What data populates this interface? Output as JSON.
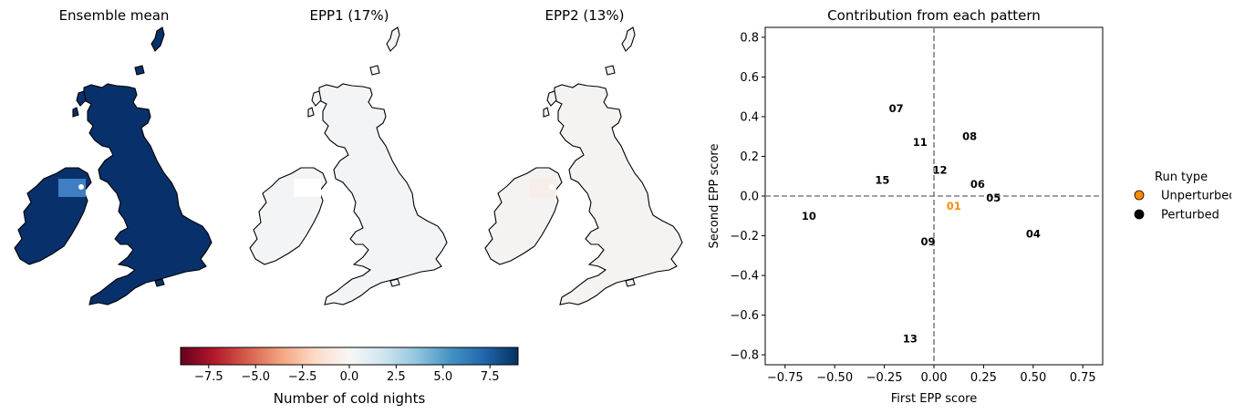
{
  "maps": [
    {
      "title": "Ensemble mean",
      "fill": "#08306b",
      "hotspot": "#3f7ec2"
    },
    {
      "title": "EPP1 (17%)",
      "fill": "#f3f4f6",
      "hotspot": "#ffffff"
    },
    {
      "title": "EPP2 (13%)",
      "fill": "#f5f3f2",
      "hotspot": "#f7eee9"
    }
  ],
  "colorbar": {
    "label": "Number of cold nights",
    "range": [
      -9,
      9
    ],
    "ticks": [
      "−7.5",
      "−5.0",
      "−2.5",
      "0.0",
      "2.5",
      "5.0",
      "7.5"
    ],
    "tick_values": [
      -7.5,
      -5.0,
      -2.5,
      0.0,
      2.5,
      5.0,
      7.5
    ],
    "colormap": "RdBu",
    "stops": [
      "#67001f",
      "#b2182b",
      "#d6604d",
      "#f4a582",
      "#fddbc7",
      "#f7f7f7",
      "#d1e5f0",
      "#92c5de",
      "#4393c3",
      "#2166ac",
      "#053061"
    ]
  },
  "chart_data": {
    "type": "scatter",
    "title": "Contribution from each pattern",
    "xlabel": "First EPP score",
    "ylabel": "Second EPP score",
    "xlim": [
      -0.85,
      0.85
    ],
    "ylim": [
      -0.85,
      0.85
    ],
    "xticks": [
      "−0.75",
      "−0.50",
      "−0.25",
      "0.00",
      "0.25",
      "0.50",
      "0.75"
    ],
    "xtick_values": [
      -0.75,
      -0.5,
      -0.25,
      0.0,
      0.25,
      0.5,
      0.75
    ],
    "yticks": [
      "−0.8",
      "−0.6",
      "−0.4",
      "−0.2",
      "0.0",
      "0.2",
      "0.4",
      "0.6",
      "0.8"
    ],
    "ytick_values": [
      -0.8,
      -0.6,
      -0.4,
      -0.2,
      0.0,
      0.2,
      0.4,
      0.6,
      0.8
    ],
    "reference_lines": {
      "x": 0.0,
      "y": 0.0,
      "style": "dashed",
      "color": "#808080"
    },
    "points": [
      {
        "label": "01",
        "x": 0.1,
        "y": -0.05,
        "run_type": "Unperturbed"
      },
      {
        "label": "04",
        "x": 0.5,
        "y": -0.19,
        "run_type": "Perturbed"
      },
      {
        "label": "05",
        "x": 0.3,
        "y": -0.01,
        "run_type": "Perturbed"
      },
      {
        "label": "06",
        "x": 0.22,
        "y": 0.06,
        "run_type": "Perturbed"
      },
      {
        "label": "07",
        "x": -0.19,
        "y": 0.44,
        "run_type": "Perturbed"
      },
      {
        "label": "08",
        "x": 0.18,
        "y": 0.3,
        "run_type": "Perturbed"
      },
      {
        "label": "09",
        "x": -0.03,
        "y": -0.23,
        "run_type": "Perturbed"
      },
      {
        "label": "10",
        "x": -0.63,
        "y": -0.1,
        "run_type": "Perturbed"
      },
      {
        "label": "11",
        "x": -0.07,
        "y": 0.27,
        "run_type": "Perturbed"
      },
      {
        "label": "12",
        "x": 0.03,
        "y": 0.13,
        "run_type": "Perturbed"
      },
      {
        "label": "13",
        "x": -0.12,
        "y": -0.72,
        "run_type": "Perturbed"
      },
      {
        "label": "15",
        "x": -0.26,
        "y": 0.08,
        "run_type": "Perturbed"
      }
    ],
    "legend": {
      "title": "Run type",
      "placement": "right",
      "entries": [
        {
          "name": "Unperturbed",
          "color": "#ff8c00"
        },
        {
          "name": "Perturbed",
          "color": "#000000"
        }
      ]
    }
  }
}
